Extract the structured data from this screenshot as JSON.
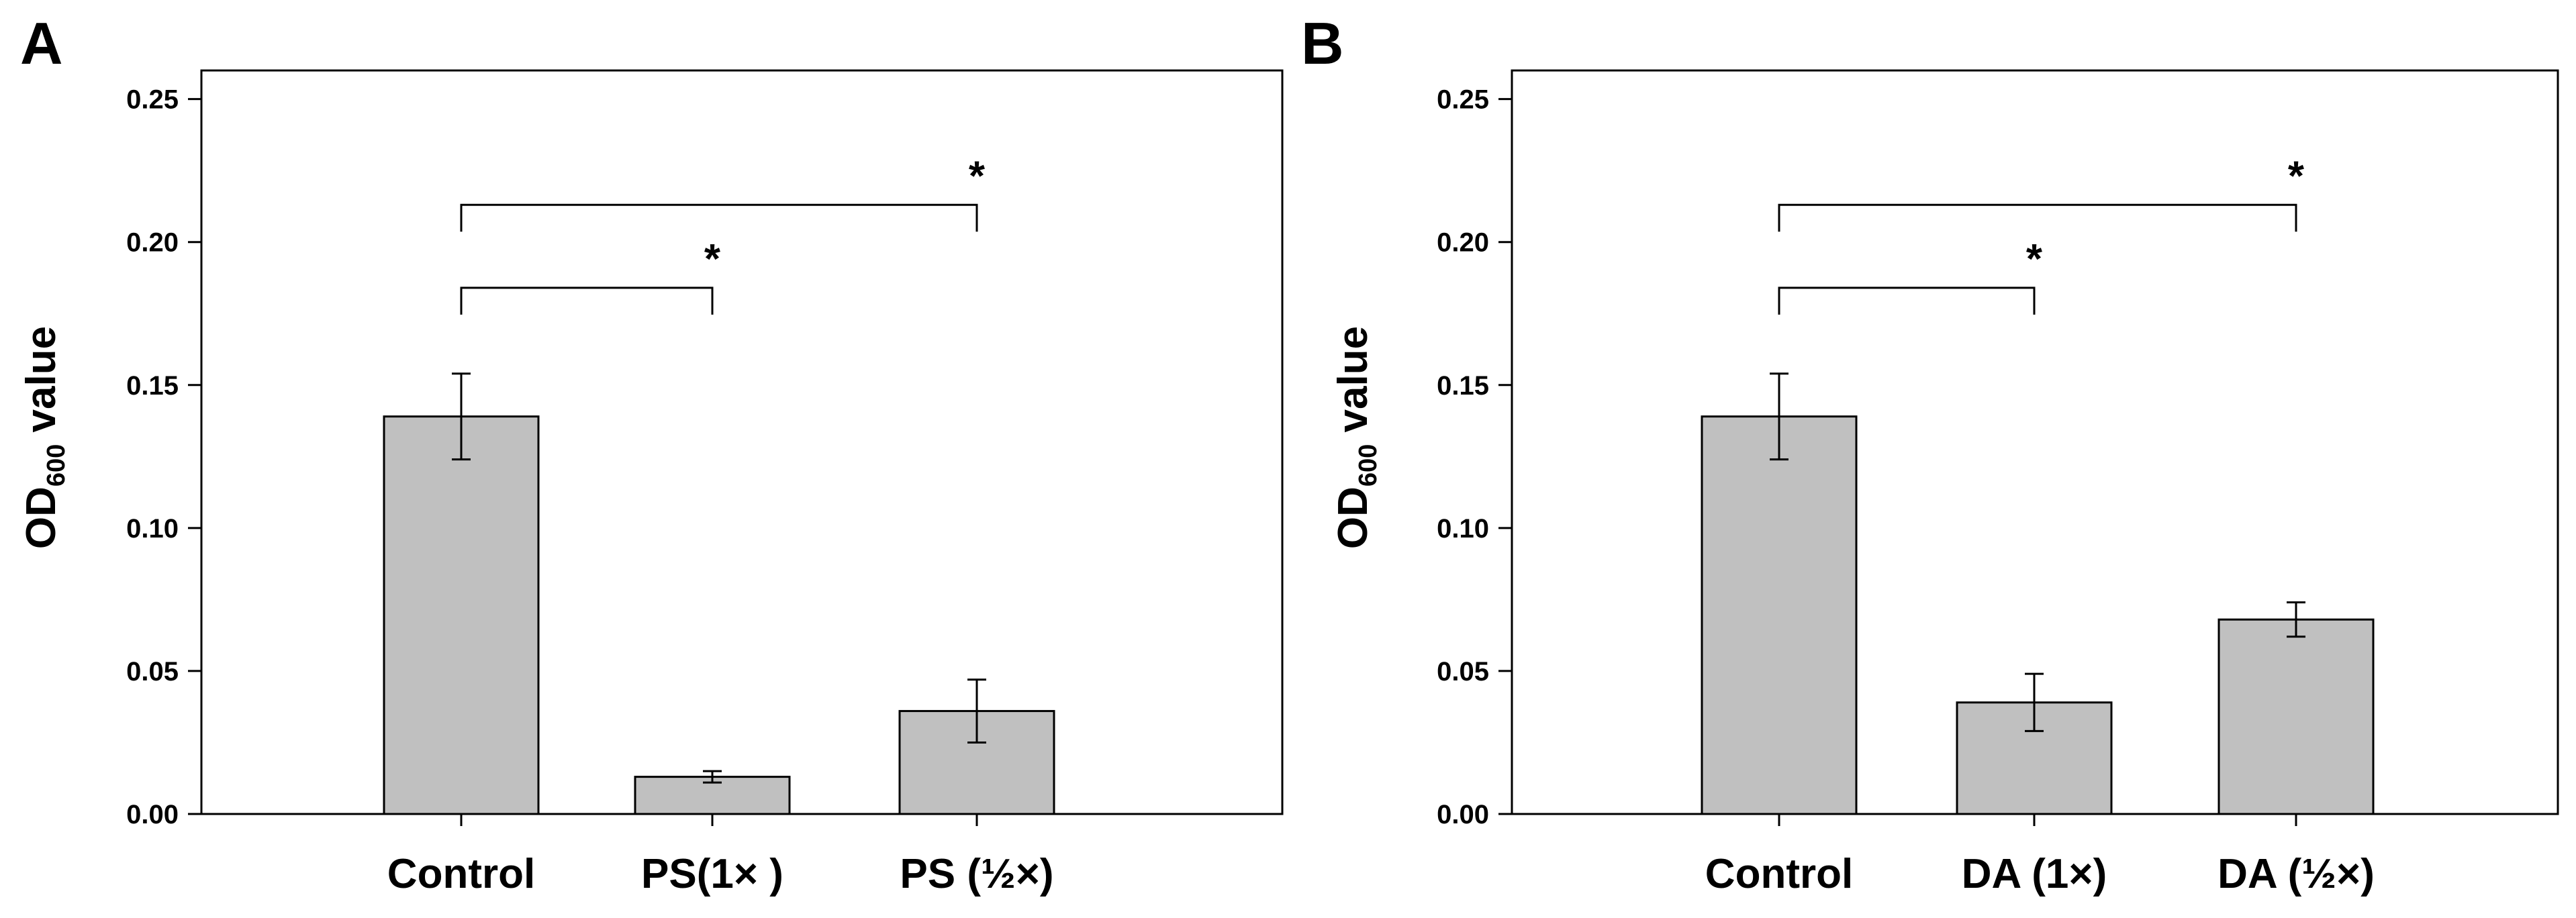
{
  "chart_data": [
    {
      "type": "bar",
      "panel": "A",
      "categories": [
        "Control",
        "PS(1× )",
        "PS (½×)"
      ],
      "values": [
        0.139,
        0.013,
        0.036
      ],
      "errors": [
        0.015,
        0.002,
        0.011
      ],
      "ylim": [
        0,
        0.26
      ],
      "yticks": [
        0.0,
        0.05,
        0.1,
        0.15,
        0.2,
        0.25
      ],
      "ytick_labels": [
        "0.00",
        "0.05",
        "0.10",
        "0.15",
        "0.20",
        "0.25"
      ],
      "ylabel_main": "OD",
      "ylabel_sub": "600",
      "ylabel_rest": " value",
      "bar_color": "#c0c0c0",
      "significance": [
        {
          "from": 0,
          "to": 1,
          "level": 0.184,
          "label": "*"
        },
        {
          "from": 0,
          "to": 2,
          "level": 0.213,
          "label": "*"
        }
      ]
    },
    {
      "type": "bar",
      "panel": "B",
      "categories": [
        "Control",
        "DA (1×)",
        "DA (½×)"
      ],
      "values": [
        0.139,
        0.039,
        0.068
      ],
      "errors": [
        0.015,
        0.01,
        0.006
      ],
      "ylim": [
        0,
        0.26
      ],
      "yticks": [
        0.0,
        0.05,
        0.1,
        0.15,
        0.2,
        0.25
      ],
      "ytick_labels": [
        "0.00",
        "0.05",
        "0.10",
        "0.15",
        "0.20",
        "0.25"
      ],
      "ylabel_main": "OD",
      "ylabel_sub": "600",
      "ylabel_rest": " value",
      "bar_color": "#c0c0c0",
      "significance": [
        {
          "from": 0,
          "to": 1,
          "level": 0.184,
          "label": "*"
        },
        {
          "from": 0,
          "to": 2,
          "level": 0.213,
          "label": "*"
        }
      ]
    }
  ]
}
